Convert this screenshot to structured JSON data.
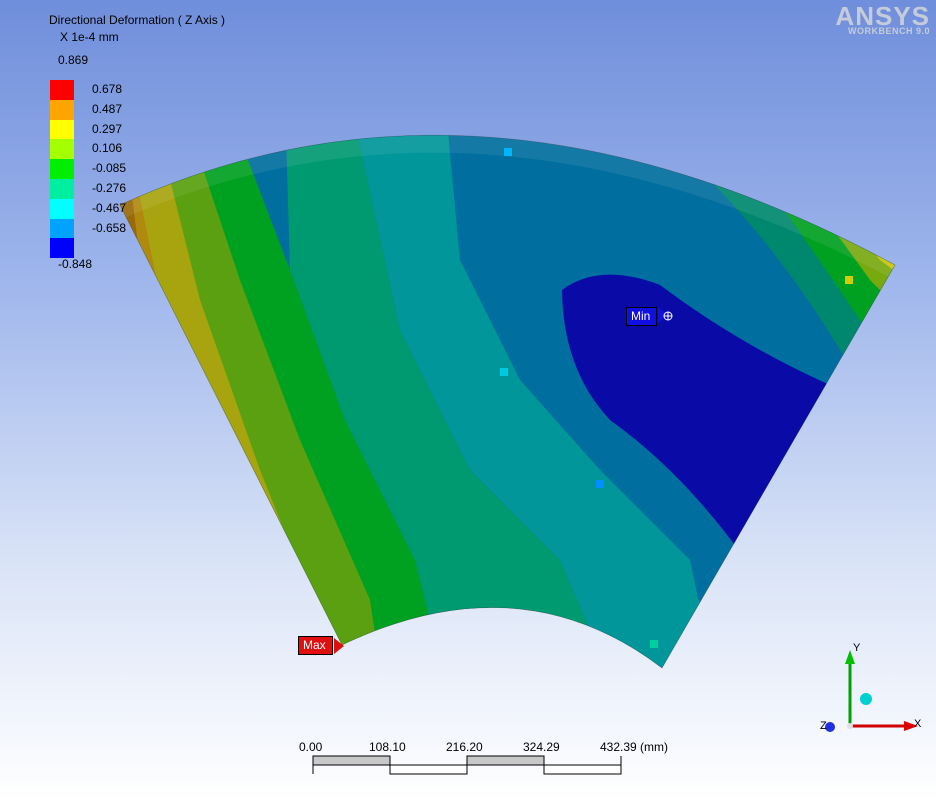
{
  "legend": {
    "title": "Directional Deformation ( Z Axis )",
    "units": "X 1e-4 mm",
    "max_value": "0.869",
    "min_value": "-0.848",
    "ticks": [
      "0.678",
      "0.487",
      "0.297",
      "0.106",
      "-0.085",
      "-0.276",
      "-0.467",
      "-0.658"
    ],
    "colors": [
      "#ff0000",
      "#ffa500",
      "#ffff00",
      "#a4ff00",
      "#00ee00",
      "#00eea0",
      "#00ffff",
      "#00a4ff",
      "#0000ff"
    ]
  },
  "logo": {
    "main": "ANSYS",
    "sub": "WORKBENCH 9.0"
  },
  "probes": {
    "max_label": "Max",
    "min_label": "Min"
  },
  "scale_bar": {
    "labels": [
      "0.00",
      "108.10",
      "216.20",
      "324.29",
      "432.39 (mm)"
    ]
  },
  "triad": {
    "x_label": "X",
    "y_label": "Y",
    "z_label": "Z"
  }
}
